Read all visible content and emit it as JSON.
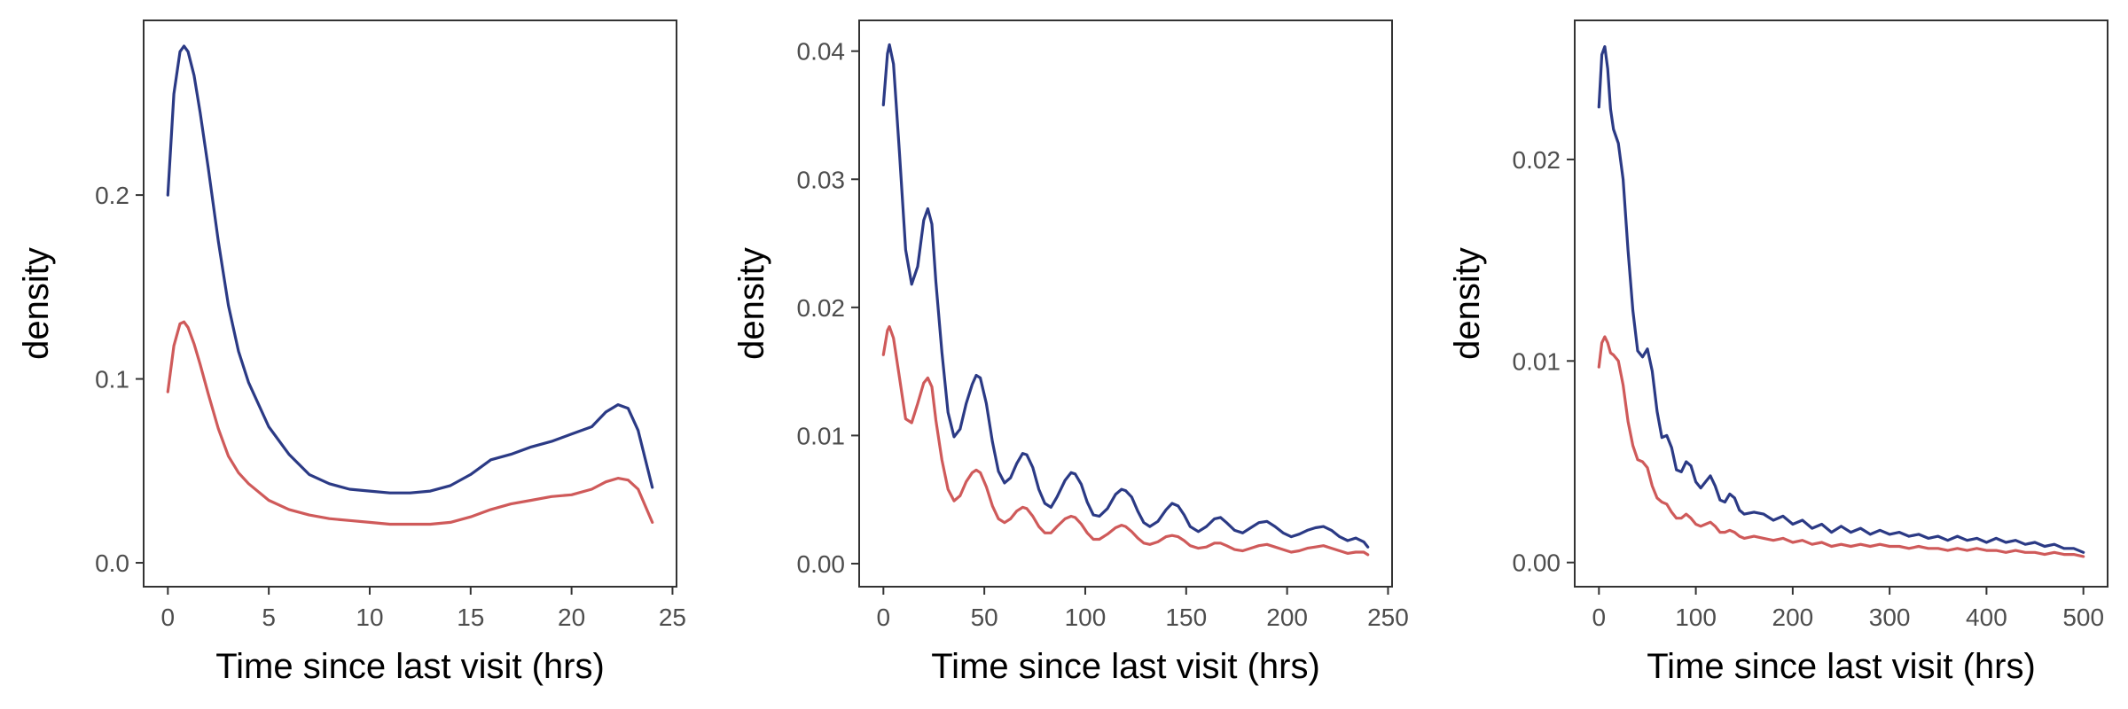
{
  "chart_data": [
    {
      "type": "line",
      "xlabel": "Time since last visit (hrs)",
      "ylabel": "density",
      "xlim": [
        -1.2,
        25.2
      ],
      "ylim": [
        -0.013,
        0.295
      ],
      "xticks": [
        0,
        5,
        10,
        15,
        20,
        25
      ],
      "xtick_labels": [
        "0",
        "5",
        "10",
        "15",
        "20",
        "25"
      ],
      "yticks": [
        0.0,
        0.1,
        0.2
      ],
      "ytick_labels": [
        "0.0",
        "0.1",
        "0.2"
      ],
      "grid": false,
      "legend": "none",
      "series": [
        {
          "color": "#2b3a85",
          "x": [
            0,
            0.3,
            0.6,
            0.8,
            1.0,
            1.3,
            1.6,
            2,
            2.5,
            3,
            3.5,
            4,
            5,
            6,
            7,
            8,
            9,
            10,
            11,
            12,
            13,
            14,
            15,
            16,
            17,
            18,
            19,
            20,
            21,
            21.7,
            22.3,
            22.8,
            23.3,
            24
          ],
          "y": [
            0.2,
            0.255,
            0.278,
            0.281,
            0.278,
            0.265,
            0.245,
            0.215,
            0.175,
            0.14,
            0.115,
            0.098,
            0.074,
            0.059,
            0.048,
            0.043,
            0.04,
            0.039,
            0.038,
            0.038,
            0.039,
            0.042,
            0.048,
            0.056,
            0.059,
            0.063,
            0.066,
            0.07,
            0.074,
            0.082,
            0.086,
            0.084,
            0.072,
            0.041
          ]
        },
        {
          "color": "#cf5a5a",
          "x": [
            0,
            0.3,
            0.6,
            0.8,
            1.0,
            1.3,
            1.6,
            2,
            2.5,
            3,
            3.5,
            4,
            5,
            6,
            7,
            8,
            9,
            10,
            11,
            12,
            13,
            14,
            15,
            16,
            17,
            18,
            19,
            20,
            21,
            21.7,
            22.3,
            22.8,
            23.3,
            24
          ],
          "y": [
            0.093,
            0.118,
            0.13,
            0.131,
            0.128,
            0.119,
            0.108,
            0.092,
            0.073,
            0.058,
            0.049,
            0.043,
            0.034,
            0.029,
            0.026,
            0.024,
            0.023,
            0.022,
            0.021,
            0.021,
            0.021,
            0.022,
            0.025,
            0.029,
            0.032,
            0.034,
            0.036,
            0.037,
            0.04,
            0.044,
            0.046,
            0.045,
            0.04,
            0.022
          ]
        }
      ]
    },
    {
      "type": "line",
      "xlabel": "Time since last visit (hrs)",
      "ylabel": "density",
      "xlim": [
        -12,
        252
      ],
      "ylim": [
        -0.0018,
        0.0424
      ],
      "xticks": [
        0,
        50,
        100,
        150,
        200,
        250
      ],
      "xtick_labels": [
        "0",
        "50",
        "100",
        "150",
        "200",
        "250"
      ],
      "yticks": [
        0.0,
        0.01,
        0.02,
        0.03,
        0.04
      ],
      "ytick_labels": [
        "0.00",
        "0.01",
        "0.02",
        "0.03",
        "0.04"
      ],
      "grid": false,
      "legend": "none",
      "series": [
        {
          "color": "#2b3a85",
          "x": [
            0,
            2,
            3,
            5,
            8,
            11,
            14,
            17,
            20,
            22,
            24,
            26,
            29,
            32,
            35,
            38,
            41,
            44,
            46,
            48,
            51,
            54,
            57,
            60,
            63,
            66,
            69,
            71,
            74,
            77,
            80,
            83,
            86,
            90,
            93,
            95,
            98,
            101,
            104,
            107,
            111,
            115,
            118,
            120,
            123,
            126,
            129,
            132,
            136,
            140,
            143,
            146,
            149,
            152,
            156,
            160,
            164,
            167,
            170,
            174,
            178,
            182,
            186,
            190,
            194,
            198,
            202,
            206,
            210,
            214,
            218,
            222,
            226,
            230,
            234,
            238,
            240
          ],
          "y": [
            0.0358,
            0.0398,
            0.0405,
            0.039,
            0.032,
            0.0245,
            0.0218,
            0.0232,
            0.0268,
            0.0277,
            0.0265,
            0.022,
            0.0165,
            0.0118,
            0.0099,
            0.0105,
            0.0125,
            0.014,
            0.0147,
            0.0145,
            0.0125,
            0.0095,
            0.0072,
            0.0063,
            0.0067,
            0.0078,
            0.0086,
            0.0085,
            0.0075,
            0.0058,
            0.0047,
            0.0044,
            0.0052,
            0.0065,
            0.0071,
            0.007,
            0.0062,
            0.0048,
            0.0038,
            0.0037,
            0.0043,
            0.0054,
            0.0058,
            0.0057,
            0.0052,
            0.0041,
            0.0032,
            0.0029,
            0.0033,
            0.0042,
            0.0047,
            0.0045,
            0.0038,
            0.0029,
            0.0025,
            0.0029,
            0.0035,
            0.0036,
            0.0032,
            0.0026,
            0.0024,
            0.0028,
            0.0032,
            0.0033,
            0.0029,
            0.0024,
            0.0021,
            0.0023,
            0.0026,
            0.0028,
            0.0029,
            0.0026,
            0.0021,
            0.0018,
            0.002,
            0.0017,
            0.0013
          ]
        },
        {
          "color": "#cf5a5a",
          "x": [
            0,
            2,
            3,
            5,
            8,
            11,
            14,
            17,
            20,
            22,
            24,
            26,
            29,
            32,
            35,
            38,
            41,
            44,
            46,
            48,
            51,
            54,
            57,
            60,
            63,
            66,
            69,
            71,
            74,
            77,
            80,
            83,
            86,
            90,
            93,
            95,
            98,
            101,
            104,
            107,
            111,
            115,
            118,
            120,
            123,
            126,
            129,
            132,
            136,
            140,
            143,
            146,
            149,
            152,
            156,
            160,
            164,
            167,
            170,
            174,
            178,
            182,
            186,
            190,
            194,
            198,
            202,
            206,
            210,
            214,
            218,
            222,
            226,
            230,
            234,
            238,
            240
          ],
          "y": [
            0.0163,
            0.0182,
            0.0185,
            0.0176,
            0.0145,
            0.0113,
            0.011,
            0.0125,
            0.0141,
            0.0145,
            0.0138,
            0.0112,
            0.0081,
            0.0058,
            0.0049,
            0.0053,
            0.0064,
            0.0071,
            0.0073,
            0.0071,
            0.006,
            0.0045,
            0.0035,
            0.0032,
            0.0035,
            0.0041,
            0.0044,
            0.0043,
            0.0037,
            0.0029,
            0.0024,
            0.0024,
            0.0029,
            0.0035,
            0.0037,
            0.0036,
            0.0031,
            0.0024,
            0.0019,
            0.0019,
            0.0023,
            0.0028,
            0.003,
            0.0029,
            0.0025,
            0.002,
            0.0016,
            0.0015,
            0.0017,
            0.0021,
            0.0022,
            0.0021,
            0.0018,
            0.0014,
            0.0012,
            0.0013,
            0.0016,
            0.0016,
            0.0014,
            0.0011,
            0.001,
            0.0012,
            0.0014,
            0.0015,
            0.0013,
            0.0011,
            0.0009,
            0.001,
            0.0012,
            0.0013,
            0.0014,
            0.0012,
            0.001,
            0.0008,
            0.0009,
            0.0009,
            0.0007
          ]
        }
      ]
    },
    {
      "type": "line",
      "xlabel": "Time since last visit (hrs)",
      "ylabel": "density",
      "xlim": [
        -25,
        525
      ],
      "ylim": [
        -0.0012,
        0.0269
      ],
      "xticks": [
        0,
        100,
        200,
        300,
        400,
        500
      ],
      "xtick_labels": [
        "0",
        "100",
        "200",
        "300",
        "400",
        "500"
      ],
      "yticks": [
        0.0,
        0.01,
        0.02
      ],
      "ytick_labels": [
        "0.00",
        "0.01",
        "0.02"
      ],
      "grid": false,
      "legend": "none",
      "series": [
        {
          "color": "#2b3a85",
          "x": [
            0,
            3,
            6,
            9,
            12,
            15,
            20,
            25,
            30,
            35,
            40,
            45,
            50,
            55,
            60,
            65,
            70,
            75,
            80,
            85,
            90,
            95,
            100,
            105,
            110,
            115,
            120,
            125,
            130,
            135,
            140,
            145,
            150,
            160,
            170,
            180,
            190,
            200,
            210,
            220,
            230,
            240,
            250,
            260,
            270,
            280,
            290,
            300,
            310,
            320,
            330,
            340,
            350,
            360,
            370,
            380,
            390,
            400,
            410,
            420,
            430,
            440,
            450,
            460,
            470,
            480,
            490,
            500
          ],
          "y": [
            0.0226,
            0.0252,
            0.0256,
            0.0245,
            0.0225,
            0.0215,
            0.0208,
            0.019,
            0.0155,
            0.0125,
            0.0105,
            0.0102,
            0.0106,
            0.0095,
            0.0075,
            0.0062,
            0.0063,
            0.0057,
            0.0046,
            0.0045,
            0.005,
            0.0048,
            0.004,
            0.0037,
            0.004,
            0.0043,
            0.0038,
            0.0031,
            0.003,
            0.0034,
            0.0032,
            0.0026,
            0.0024,
            0.0025,
            0.0024,
            0.0021,
            0.0023,
            0.0019,
            0.0021,
            0.0017,
            0.0019,
            0.0015,
            0.0018,
            0.0015,
            0.0017,
            0.0014,
            0.0016,
            0.0014,
            0.0015,
            0.0013,
            0.0014,
            0.0012,
            0.0013,
            0.0011,
            0.0013,
            0.0011,
            0.0012,
            0.001,
            0.0012,
            0.001,
            0.0011,
            0.0009,
            0.001,
            0.0008,
            0.0009,
            0.0007,
            0.0007,
            0.0005
          ]
        },
        {
          "color": "#cf5a5a",
          "x": [
            0,
            3,
            6,
            9,
            12,
            15,
            20,
            25,
            30,
            35,
            40,
            45,
            50,
            55,
            60,
            65,
            70,
            75,
            80,
            85,
            90,
            95,
            100,
            105,
            110,
            115,
            120,
            125,
            130,
            135,
            140,
            145,
            150,
            160,
            170,
            180,
            190,
            200,
            210,
            220,
            230,
            240,
            250,
            260,
            270,
            280,
            290,
            300,
            310,
            320,
            330,
            340,
            350,
            360,
            370,
            380,
            390,
            400,
            410,
            420,
            430,
            440,
            450,
            460,
            470,
            480,
            490,
            500
          ],
          "y": [
            0.0097,
            0.0109,
            0.0112,
            0.0109,
            0.0104,
            0.0103,
            0.01,
            0.0088,
            0.007,
            0.0058,
            0.0051,
            0.005,
            0.0047,
            0.0038,
            0.0032,
            0.003,
            0.0029,
            0.0025,
            0.0022,
            0.0022,
            0.0024,
            0.0022,
            0.0019,
            0.0018,
            0.0019,
            0.002,
            0.0018,
            0.0015,
            0.0015,
            0.0016,
            0.0015,
            0.0013,
            0.0012,
            0.0013,
            0.0012,
            0.0011,
            0.0012,
            0.001,
            0.0011,
            0.0009,
            0.001,
            0.0008,
            0.0009,
            0.0008,
            0.0009,
            0.0008,
            0.0009,
            0.0008,
            0.0008,
            0.0007,
            0.0008,
            0.0007,
            0.0007,
            0.0006,
            0.0007,
            0.0006,
            0.0007,
            0.0006,
            0.0006,
            0.0005,
            0.0006,
            0.0005,
            0.0005,
            0.0004,
            0.0005,
            0.0004,
            0.0004,
            0.0003
          ]
        }
      ]
    }
  ]
}
